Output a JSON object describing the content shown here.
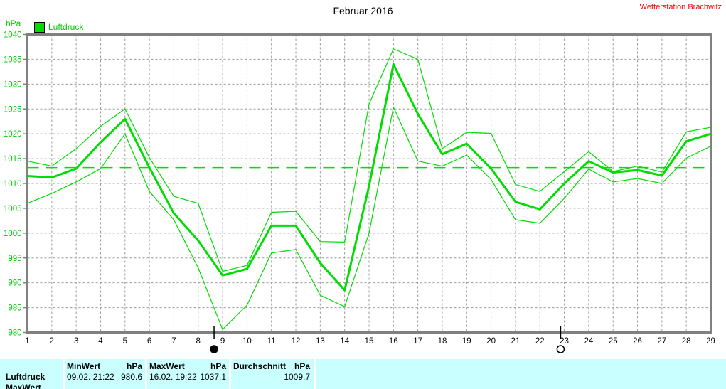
{
  "header": {
    "title": "Februar 2016",
    "station": "Wetterstation Brachwitz"
  },
  "y_axis_unit": "hPa",
  "legend": {
    "label": "Luftdruck"
  },
  "colors": {
    "line_green": "#00dd00",
    "text_green": "#00cc00",
    "grid_gray": "#999999",
    "border_gray": "#808080",
    "station_red": "#ff0000",
    "table_bg": "#c9ffff",
    "label_black": "#000000"
  },
  "chart_data": {
    "type": "line",
    "title": "Februar 2016",
    "xlabel": "",
    "ylabel": "hPa",
    "x": [
      1,
      2,
      3,
      4,
      5,
      6,
      7,
      8,
      9,
      10,
      11,
      12,
      13,
      14,
      15,
      16,
      17,
      18,
      19,
      20,
      21,
      22,
      23,
      24,
      25,
      26,
      27,
      28,
      29
    ],
    "yticks": [
      980,
      985,
      990,
      995,
      1000,
      1005,
      1010,
      1015,
      1020,
      1025,
      1030,
      1035,
      1040
    ],
    "ylim": [
      980,
      1040
    ],
    "grid": true,
    "legend_position": "top-left",
    "legend_entries": [
      "Luftdruck"
    ],
    "reference_line": {
      "value": 1013.2,
      "style": "long-dash",
      "color": "#00dd00"
    },
    "series": [
      {
        "name": "max",
        "stroke_width": 1.2,
        "values": [
          1014.5,
          1013.5,
          1017,
          1021.5,
          1025,
          1015.2,
          1007.4,
          1006,
          992.3,
          993.5,
          1004.2,
          1004.4,
          998.3,
          998.2,
          1026,
          1037.1,
          1035,
          1017,
          1020.3,
          1020.1,
          1009.8,
          1008.4,
          1012.4,
          1016.4,
          1012.4,
          1013.5,
          1012.3,
          1020.4,
          1021.3
        ]
      },
      {
        "name": "mean",
        "stroke_width": 3,
        "values": [
          1011.5,
          1011.2,
          1013,
          1018.3,
          1023,
          1013.2,
          1004,
          998.5,
          991.5,
          992.8,
          1001.5,
          1001.5,
          994,
          988.5,
          1009.5,
          1034,
          1024,
          1015.9,
          1018,
          1013,
          1006.3,
          1004.8,
          1010,
          1014.5,
          1012.2,
          1012.7,
          1011.6,
          1018.5,
          1020
        ]
      },
      {
        "name": "min",
        "stroke_width": 1.2,
        "values": [
          1006,
          1008,
          1010.3,
          1013,
          1020,
          1008.4,
          1002.7,
          993,
          980.6,
          985.5,
          996,
          996.7,
          987.5,
          985.2,
          1000,
          1025.4,
          1014.5,
          1013.5,
          1015.7,
          1010.8,
          1002.7,
          1002,
          1007,
          1012.9,
          1010.3,
          1011,
          1010,
          1015.1,
          1017.5
        ]
      }
    ],
    "moon_phases": [
      {
        "day": 8.65,
        "phase": "new-moon"
      },
      {
        "day": 22.85,
        "phase": "full-moon"
      }
    ]
  },
  "info_table": {
    "row_label": "Luftdruck",
    "clipped_row_label": "MaxWert",
    "columns": [
      {
        "header_label": "MinWert",
        "header_unit": "hPa",
        "value_datetime": "09.02.  21:22",
        "value_number": "980.6"
      },
      {
        "header_label": "MaxWert",
        "header_unit": "hPa",
        "value_datetime": "16.02.  19:22",
        "value_number": "1037.1"
      },
      {
        "header_label": "Durchschnitt",
        "header_unit": "hPa",
        "value_datetime": "",
        "value_number": "1009.7"
      }
    ]
  }
}
